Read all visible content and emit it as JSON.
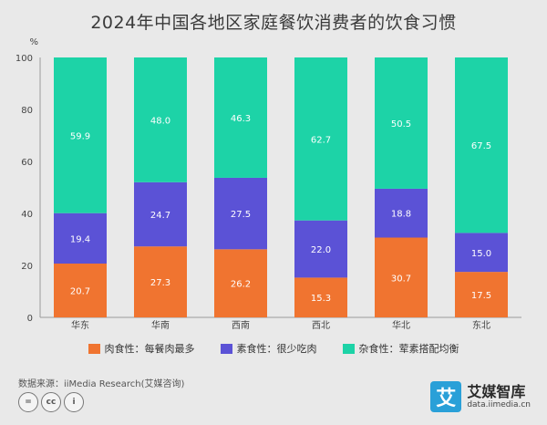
{
  "title": "2024年中国各地区家庭餐饮消费者的饮食习惯",
  "source": "数据来源：iiMedia Research(艾媒咨询)",
  "license_icons": [
    "=",
    "cc",
    "i"
  ],
  "brand": {
    "name": "艾媒智库",
    "url": "data.iimedia.cn",
    "logo_char": "艾"
  },
  "colors": {
    "meat": "#f07430",
    "veg": "#5b52d6",
    "mixed": "#1dd3a7"
  },
  "chart_data": {
    "type": "bar",
    "stacked": true,
    "title": "2024年中国各地区家庭餐饮消费者的饮食习惯",
    "ylabel": "%",
    "ylim": [
      0,
      100
    ],
    "yticks": [
      0,
      20,
      40,
      60,
      80,
      100
    ],
    "categories": [
      "华东",
      "华南",
      "西南",
      "西北",
      "华北",
      "东北"
    ],
    "series": [
      {
        "name": "肉食性：每餐肉最多",
        "values": [
          20.7,
          27.3,
          26.2,
          15.3,
          30.7,
          17.5
        ]
      },
      {
        "name": "素食性：很少吃肉",
        "values": [
          19.4,
          24.7,
          27.5,
          22.0,
          18.8,
          15.0
        ]
      },
      {
        "name": "杂食性：荤素搭配均衡",
        "values": [
          59.9,
          48.0,
          46.3,
          62.7,
          50.5,
          67.5
        ]
      }
    ],
    "legend_position": "bottom",
    "grid": false
  }
}
